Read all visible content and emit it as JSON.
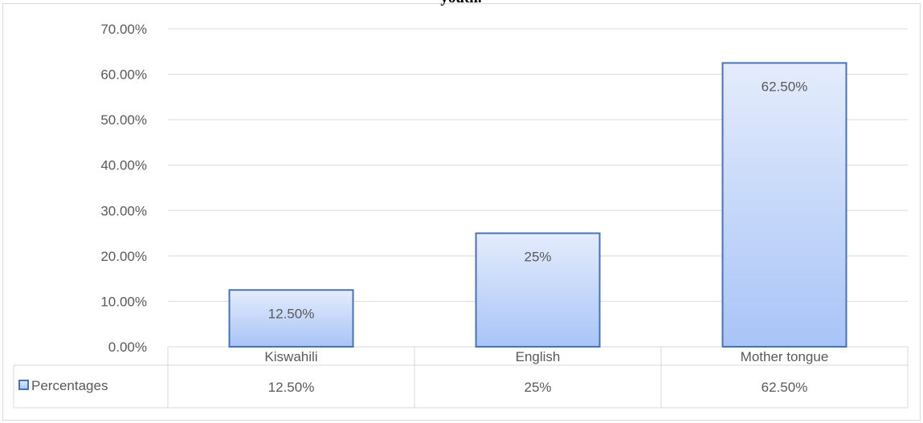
{
  "chart_data": {
    "type": "bar",
    "title": "youth.",
    "categories": [
      "Kiswahili",
      "English",
      "Mother tongue"
    ],
    "series": [
      {
        "name": "Percentages",
        "values": [
          12.5,
          25,
          62.5
        ],
        "data_labels": [
          "12.50%",
          "25%",
          "62.50%"
        ]
      }
    ],
    "ylim": [
      0,
      70
    ],
    "y_ticks": [
      0,
      10,
      20,
      30,
      40,
      50,
      60,
      70
    ],
    "y_tick_labels": [
      "0.00%",
      "10.00%",
      "20.00%",
      "30.00%",
      "40.00%",
      "50.00%",
      "60.00%",
      "70.00%"
    ],
    "xlabel": "",
    "ylabel": "",
    "grid": true,
    "legend": "data-table",
    "colors": {
      "bar_fill_top": "#e4ecfc",
      "bar_fill_bottom": "#a8c4f7",
      "bar_border": "#4a72b0",
      "gridline": "#d9d9d9",
      "text": "#595959"
    }
  }
}
